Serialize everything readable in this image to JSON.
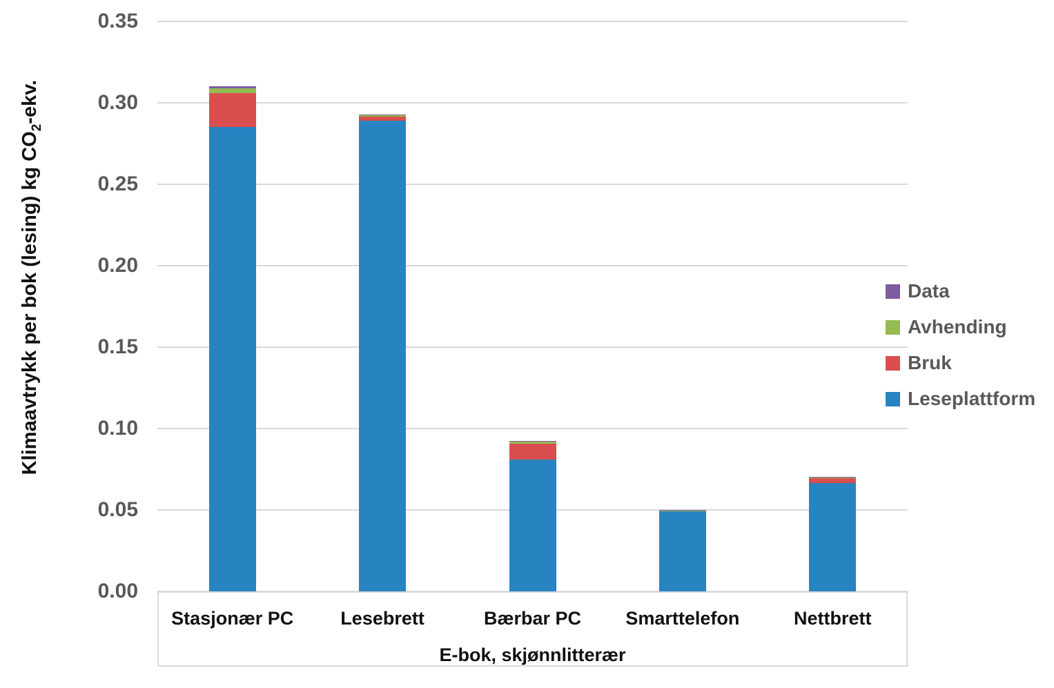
{
  "chart_data": {
    "type": "bar",
    "stacked": true,
    "title": "",
    "categories": [
      "Stasjonær PC",
      "Lesebrett",
      "Bærbar PC",
      "Smarttelefon",
      "Nettbrett"
    ],
    "series": [
      {
        "name": "Leseplattform",
        "color": "#2883C1",
        "values": [
          0.285,
          0.289,
          0.081,
          0.049,
          0.0665
        ]
      },
      {
        "name": "Bruk",
        "color": "#D94E4E",
        "values": [
          0.021,
          0.0025,
          0.0095,
          0.0004,
          0.003
        ]
      },
      {
        "name": "Avhending",
        "color": "#95BB51",
        "values": [
          0.003,
          0.001,
          0.0015,
          0.0002,
          0.0007
        ]
      },
      {
        "name": "Data",
        "color": "#7D5CA2",
        "values": [
          0.001,
          0.0005,
          0.0005,
          0.0002,
          0.0003
        ]
      }
    ],
    "totals": [
      0.31,
      0.293,
      0.0925,
      0.0498,
      0.0705
    ],
    "legend_order": [
      "Data",
      "Avhending",
      "Bruk",
      "Leseplattform"
    ],
    "legend_position": "right",
    "xlabel": "E-bok, skjønnlitterær",
    "ylabel": "Klimaavtrykk per bok (lesing) kg CO2-ekv.",
    "ylabel_parts": {
      "pre": "Klimaavtrykk per bok (lesing) kg CO",
      "sub": "2",
      "post": "-ekv."
    },
    "ylim": [
      0,
      0.35
    ],
    "ytick_step": 0.05,
    "yticks": [
      "0.00",
      "0.05",
      "0.10",
      "0.15",
      "0.20",
      "0.25",
      "0.30",
      "0.35"
    ],
    "grid": "horizontal"
  },
  "colors": {
    "background": "#FFFFFF",
    "grid": "#D9D9D9",
    "tick_text": "#595959",
    "legend_text": "#595959",
    "category_text": "#111111",
    "axis_title_text": "#111111"
  }
}
